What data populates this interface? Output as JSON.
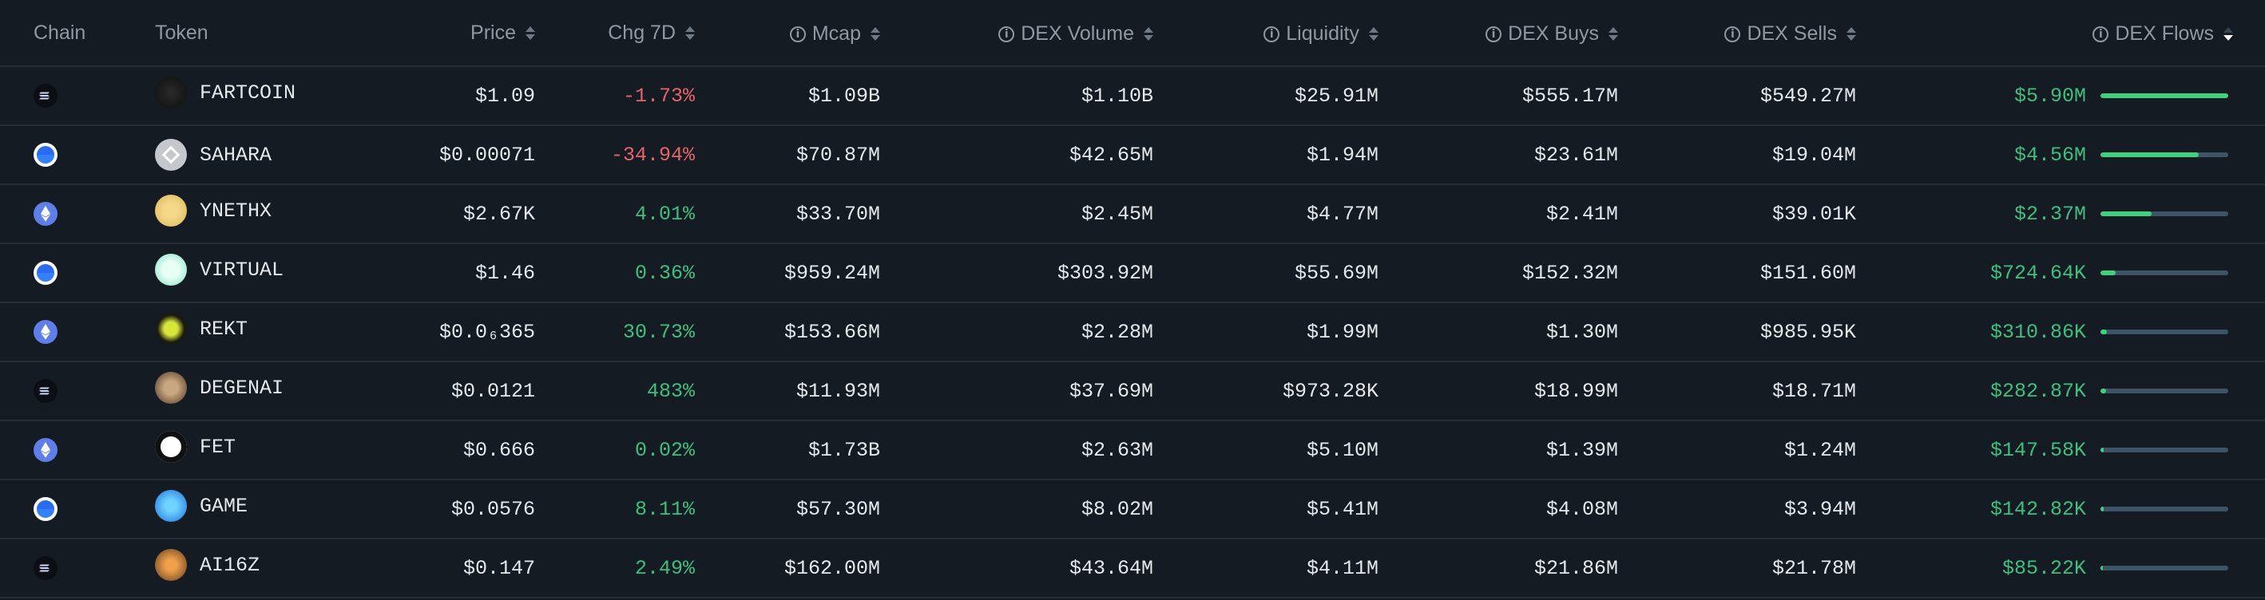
{
  "headers": {
    "chain": "Chain",
    "token": "Token",
    "price": "Price",
    "chg7d": "Chg 7D",
    "mcap": "Mcap",
    "dex_volume": "DEX Volume",
    "liquidity": "Liquidity",
    "dex_buys": "DEX Buys",
    "dex_sells": "DEX Sells",
    "dex_flows": "DEX Flows"
  },
  "colors": {
    "background": "#141b23",
    "positive": "#3fbf7f",
    "negative": "#e8626a",
    "bar_track": "#3c5566",
    "bar_fill": "#3ed27f"
  },
  "rows": [
    {
      "chain": "solana",
      "token": "FARTCOIN",
      "logo": "fartcoin-logo",
      "price": "$1.09",
      "chg": "-1.73%",
      "dir": "neg",
      "mcap": "$1.09B",
      "vol": "$1.10B",
      "liq": "$25.91M",
      "buys": "$555.17M",
      "sells": "$549.27M",
      "flows": "$5.90M",
      "flow_fraction": 1.0
    },
    {
      "chain": "base",
      "token": "SAHARA",
      "logo": "sahara-logo",
      "price": "$0.00071",
      "chg": "-34.94%",
      "dir": "neg",
      "mcap": "$70.87M",
      "vol": "$42.65M",
      "liq": "$1.94M",
      "buys": "$23.61M",
      "sells": "$19.04M",
      "flows": "$4.56M",
      "flow_fraction": 0.77
    },
    {
      "chain": "ethereum",
      "token": "YNETHX",
      "logo": "ynethx-logo",
      "price": "$2.67K",
      "chg": "4.01%",
      "dir": "pos",
      "mcap": "$33.70M",
      "vol": "$2.45M",
      "liq": "$4.77M",
      "buys": "$2.41M",
      "sells": "$39.01K",
      "flows": "$2.37M",
      "flow_fraction": 0.4
    },
    {
      "chain": "base",
      "token": "VIRTUAL",
      "logo": "virtual-logo",
      "price": "$1.46",
      "chg": "0.36%",
      "dir": "pos",
      "mcap": "$959.24M",
      "vol": "$303.92M",
      "liq": "$55.69M",
      "buys": "$152.32M",
      "sells": "$151.60M",
      "flows": "$724.64K",
      "flow_fraction": 0.12
    },
    {
      "chain": "ethereum",
      "token": "REKT",
      "logo": "rekt-logo",
      "price": "$0.0₆365",
      "chg": "30.73%",
      "dir": "pos",
      "mcap": "$153.66M",
      "vol": "$2.28M",
      "liq": "$1.99M",
      "buys": "$1.30M",
      "sells": "$985.95K",
      "flows": "$310.86K",
      "flow_fraction": 0.05
    },
    {
      "chain": "solana",
      "token": "DEGENAI",
      "logo": "degenai-logo",
      "price": "$0.0121",
      "chg": "483%",
      "dir": "pos",
      "mcap": "$11.93M",
      "vol": "$37.69M",
      "liq": "$973.28K",
      "buys": "$18.99M",
      "sells": "$18.71M",
      "flows": "$282.87K",
      "flow_fraction": 0.045
    },
    {
      "chain": "ethereum",
      "token": "FET",
      "logo": "fet-logo",
      "price": "$0.666",
      "chg": "0.02%",
      "dir": "pos",
      "mcap": "$1.73B",
      "vol": "$2.63M",
      "liq": "$5.10M",
      "buys": "$1.39M",
      "sells": "$1.24M",
      "flows": "$147.58K",
      "flow_fraction": 0.025
    },
    {
      "chain": "base",
      "token": "GAME",
      "logo": "game-logo",
      "price": "$0.0576",
      "chg": "8.11%",
      "dir": "pos",
      "mcap": "$57.30M",
      "vol": "$8.02M",
      "liq": "$5.41M",
      "buys": "$4.08M",
      "sells": "$3.94M",
      "flows": "$142.82K",
      "flow_fraction": 0.024
    },
    {
      "chain": "solana",
      "token": "AI16Z",
      "logo": "ai16z-logo",
      "price": "$0.147",
      "chg": "2.49%",
      "dir": "pos",
      "mcap": "$162.00M",
      "vol": "$43.64M",
      "liq": "$4.11M",
      "buys": "$21.86M",
      "sells": "$21.78M",
      "flows": "$85.22K",
      "flow_fraction": 0.014
    }
  ]
}
